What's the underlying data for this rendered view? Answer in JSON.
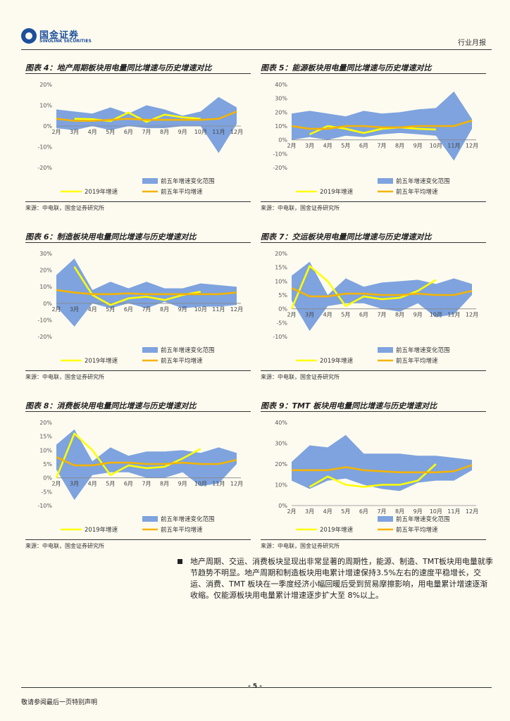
{
  "header": {
    "logo_cn": "国金证券",
    "logo_en": "SINOLINK SECURITIES",
    "report_type": "行业月报"
  },
  "legend": {
    "range": "前五年增速变化范围",
    "current": "2019年增速",
    "avg": "前五年平均增速"
  },
  "colors": {
    "range": "#7ea3de",
    "current": "#ffff00",
    "avg": "#f5b400"
  },
  "source": "来源：中电联，国金证券研究所",
  "chart_data": [
    {
      "type": "area",
      "title": "图表 4：地产周期板块用电量同比增速与历史增速对比",
      "categories": [
        "2月",
        "3月",
        "4月",
        "5月",
        "6月",
        "7月",
        "8月",
        "9月",
        "10月",
        "11月",
        "12月"
      ],
      "ylim": [
        -20,
        20
      ],
      "yticks": [
        -20,
        -10,
        0,
        10,
        20
      ],
      "range_high": [
        8,
        7,
        6,
        9,
        6,
        10,
        8,
        5,
        7,
        14,
        9
      ],
      "range_low": [
        -1,
        -2,
        0,
        -2,
        0,
        -1,
        -1,
        0,
        0,
        -13,
        1
      ],
      "series": [
        {
          "name": "2019年增速",
          "values": [
            null,
            3.5,
            3.3,
            2.4,
            6.5,
            2.0,
            5.5,
            4.2,
            3.5,
            null,
            null
          ]
        },
        {
          "name": "前五年平均增速",
          "values": [
            3.5,
            2.5,
            2.5,
            3.0,
            3.5,
            3.0,
            3.0,
            3.0,
            3.0,
            3.5,
            7.0
          ]
        }
      ]
    },
    {
      "type": "area",
      "title": "图表 5：能源板块用电量同比增速与历史增速对比",
      "categories": [
        "2月",
        "3月",
        "4月",
        "5月",
        "6月",
        "7月",
        "8月",
        "9月",
        "10月",
        "11月",
        "12月"
      ],
      "ylim": [
        -20,
        40
      ],
      "yticks": [
        -20,
        -10,
        0,
        10,
        20,
        30,
        40
      ],
      "range_high": [
        19,
        21,
        19,
        17,
        21,
        19,
        20,
        22,
        23,
        35,
        15
      ],
      "range_low": [
        0,
        2,
        0,
        3,
        2,
        4,
        5,
        4,
        3,
        -15,
        8
      ],
      "series": [
        {
          "name": "2019年增速",
          "values": [
            null,
            4,
            10,
            8,
            5,
            8,
            9,
            8,
            7.5,
            null,
            null
          ]
        },
        {
          "name": "前五年平均增速",
          "values": [
            10,
            8,
            8,
            10,
            10,
            9,
            9,
            10,
            10,
            10,
            14
          ]
        }
      ]
    },
    {
      "type": "area",
      "title": "图表 6：制造板块用电量同比增速与历史增速对比",
      "categories": [
        "2月",
        "3月",
        "4月",
        "5月",
        "6月",
        "7月",
        "8月",
        "9月",
        "10月",
        "11月",
        "12月"
      ],
      "ylim": [
        -20,
        30
      ],
      "yticks": [
        -20,
        -10,
        0,
        10,
        20,
        30
      ],
      "range_high": [
        17,
        27,
        8,
        13,
        9,
        13,
        9,
        9,
        12,
        11,
        10
      ],
      "range_low": [
        -2,
        -14,
        0,
        -3,
        0,
        -3,
        1,
        -3,
        -2,
        -2,
        -1
      ],
      "series": [
        {
          "name": "2019年增速",
          "values": [
            null,
            22,
            5,
            -1,
            3,
            4,
            2,
            5,
            7,
            null,
            null
          ]
        },
        {
          "name": "前五年平均增速",
          "values": [
            8,
            6.5,
            5.5,
            5.5,
            6,
            5.5,
            5.5,
            5.5,
            5.5,
            5.5,
            6.5
          ]
        }
      ]
    },
    {
      "type": "area",
      "title": "图表 7：交运板块用电量同比增速与历史增速对比",
      "categories": [
        "2月",
        "3月",
        "4月",
        "5月",
        "6月",
        "7月",
        "8月",
        "9月",
        "10月",
        "11月",
        "12月"
      ],
      "ylim": [
        -10,
        20
      ],
      "yticks": [
        -10,
        -5,
        0,
        5,
        10,
        15,
        20
      ],
      "range_high": [
        12,
        17,
        5,
        11,
        8,
        9.5,
        10,
        10.5,
        9,
        11,
        9
      ],
      "range_low": [
        3,
        -8,
        1,
        2,
        2,
        0,
        -1,
        2,
        -3,
        -2,
        5
      ],
      "series": [
        {
          "name": "2019年增速",
          "values": [
            0,
            15.5,
            10,
            1,
            4.5,
            3.5,
            4,
            6.5,
            10.5,
            null,
            null
          ]
        },
        {
          "name": "前五年平均增速",
          "values": [
            7.5,
            4.5,
            4.5,
            5.5,
            5.5,
            5.0,
            5.0,
            5.5,
            5.0,
            5.0,
            6.5
          ]
        }
      ]
    },
    {
      "type": "area",
      "title": "图表 8：消费板块用电量同比增速与历史增速对比",
      "categories": [
        "2月",
        "3月",
        "4月",
        "5月",
        "6月",
        "7月",
        "8月",
        "9月",
        "10月",
        "11月",
        "12月"
      ],
      "ylim": [
        -10,
        20
      ],
      "yticks": [
        -10,
        -5,
        0,
        5,
        10,
        15,
        20
      ],
      "range_high": [
        12,
        17.5,
        6,
        11,
        8,
        9.5,
        9.5,
        10,
        9,
        11,
        9
      ],
      "range_low": [
        3,
        -8,
        1,
        2,
        2,
        0,
        0,
        2,
        -3,
        -2,
        5
      ],
      "series": [
        {
          "name": "2019年增速",
          "values": [
            0,
            16,
            10,
            1,
            4.5,
            3.5,
            4,
            7,
            10.5,
            null,
            null
          ]
        },
        {
          "name": "前五年平均增速",
          "values": [
            7.5,
            4.5,
            4.5,
            5.5,
            5.5,
            5.0,
            5.0,
            5.5,
            5.0,
            5.0,
            6.5
          ]
        }
      ]
    },
    {
      "type": "area",
      "title": "图表 9：TMT 板块用电量同比增速与历史增速对比",
      "categories": [
        "2月",
        "3月",
        "4月",
        "5月",
        "6月",
        "7月",
        "8月",
        "9月",
        "10月",
        "11月",
        "12月"
      ],
      "ylim": [
        0,
        40
      ],
      "yticks": [
        0,
        10,
        20,
        30,
        40
      ],
      "range_high": [
        21,
        29,
        28,
        34,
        25,
        25,
        25,
        24,
        24,
        23,
        22
      ],
      "range_low": [
        12,
        8,
        12,
        13,
        10,
        8,
        7,
        11,
        12,
        12,
        17
      ],
      "series": [
        {
          "name": "2019年增速",
          "values": [
            null,
            9,
            14,
            10,
            9,
            10,
            10,
            12,
            20,
            null,
            null
          ]
        },
        {
          "name": "前五年平均增速",
          "values": [
            17,
            17,
            17,
            18.5,
            17,
            16.5,
            16,
            16,
            16,
            16.5,
            19.5
          ]
        }
      ]
    }
  ],
  "body": {
    "paragraph": "地产周期、交运、消费板块显现出非常显著的周期性，能源、制造、TMT板块用电量就季节趋势不明显。地产周期和制造板块用电累计增速保持3.5%左右的速度平稳增长，交运、消费、TMT 板块在一季度经济小幅回暖后受到贸易摩擦影响，用电量累计增速逐渐收缩。仅能源板块用电量累计增速逐步扩大至 8%以上。"
  },
  "footer": {
    "page": "- 5 -",
    "disclaimer": "敬请参阅最后一页特别声明"
  }
}
